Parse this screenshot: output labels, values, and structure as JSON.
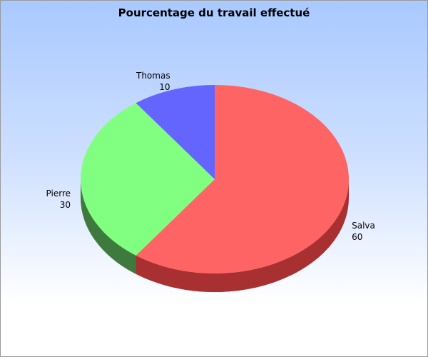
{
  "chart_data": {
    "type": "pie",
    "title": "Pourcentage du travail effectué",
    "slices": [
      {
        "label": "Salva",
        "value": 60,
        "color": "#ff6464",
        "side_color": "#a83030"
      },
      {
        "label": "Pierre",
        "value": 30,
        "color": "#80ff80",
        "side_color": "#3e7a3e"
      },
      {
        "label": "Thomas",
        "value": 10,
        "color": "#6464ff",
        "side_color": "#30307a"
      }
    ],
    "legend": "none",
    "labels_position": "outside",
    "style": "3d",
    "background_gradient": [
      "#a9c9ff",
      "#ffffff"
    ]
  }
}
